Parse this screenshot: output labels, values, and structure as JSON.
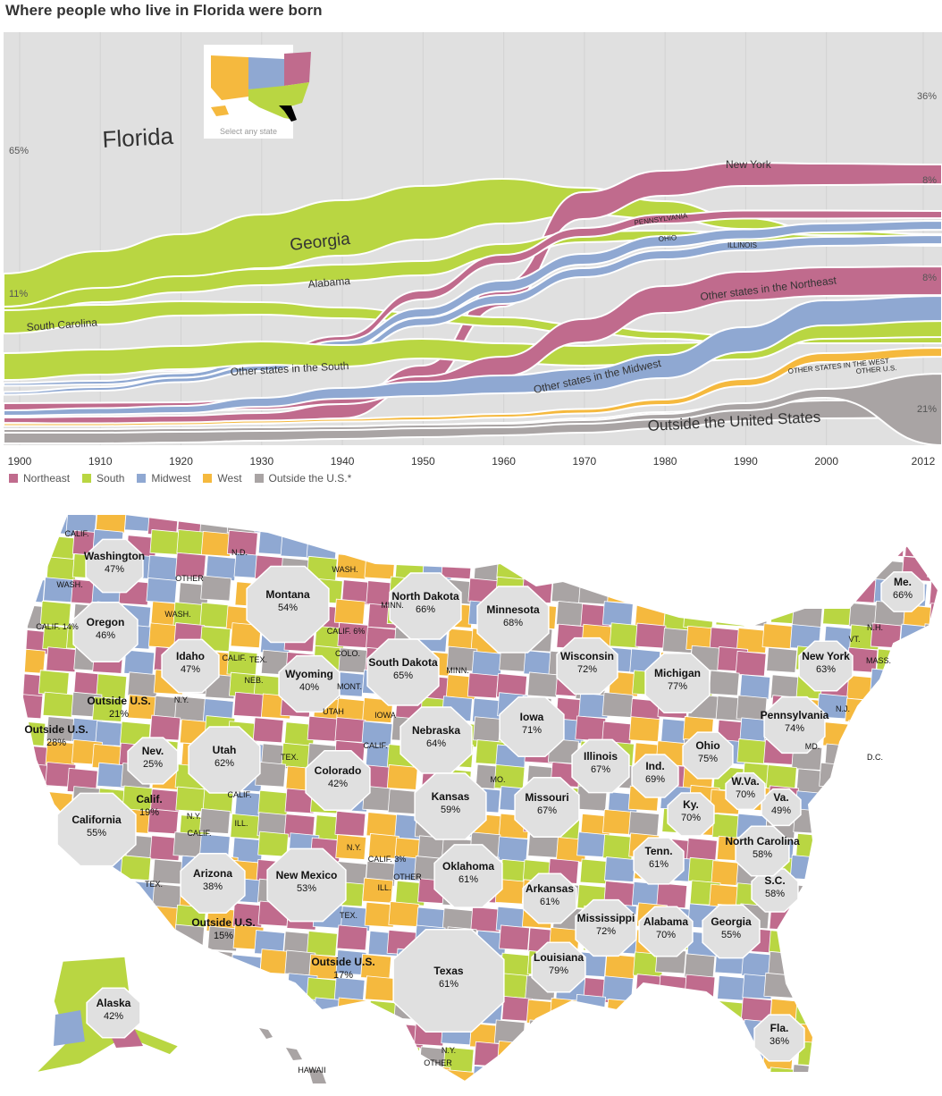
{
  "title": "Where people who live in Florida were born",
  "colors": {
    "northeast": "#c06b8d",
    "south": "#b9d642",
    "midwest": "#8fa8d2",
    "west": "#f5b93e",
    "outside": "#a9a4a4",
    "home": "#e0e0e0",
    "stroke": "#ffffff"
  },
  "inset": {
    "label": "Select any state"
  },
  "chart_data": [
    {
      "type": "area",
      "subtype": "stacked stream",
      "title": "Where people who live in Florida were born",
      "x": [
        "1900",
        "1910",
        "1920",
        "1930",
        "1940",
        "1950",
        "1960",
        "1970",
        "1980",
        "1990",
        "2000",
        "2012"
      ],
      "ylim": [
        0,
        100
      ],
      "legend": [
        {
          "name": "Northeast",
          "color": "northeast"
        },
        {
          "name": "South",
          "color": "south"
        },
        {
          "name": "Midwest",
          "color": "midwest"
        },
        {
          "name": "West",
          "color": "west"
        },
        {
          "name": "Outside the U.S.*",
          "color": "outside"
        }
      ],
      "end_labels": {
        "florida_start": "65%",
        "florida_end": "36%",
        "newyork_end": "8%",
        "otherne_end": "8%",
        "sc_start": "11%",
        "outside_end": "21%"
      },
      "series_labels": {
        "florida": "Florida",
        "georgia": "Georgia",
        "alabama": "Alabama",
        "south_carolina": "South Carolina",
        "other_south": "Other states in the South",
        "new_york": "New York",
        "pennsylvania": "PENNSYLVANIA",
        "ohio": "OHIO",
        "illinois": "ILLINOIS",
        "other_northeast": "Other states in the Northeast",
        "other_midwest": "Other states in the Midwest",
        "other_west": "OTHER STATES IN THE WEST",
        "other_us": "OTHER U.S.",
        "outside": "Outside the United States"
      }
    },
    {
      "type": "map",
      "title": "",
      "home_states": [
        {
          "name": "Washington",
          "pct": "47%"
        },
        {
          "name": "Oregon",
          "pct": "46%"
        },
        {
          "name": "California",
          "pct": "55%"
        },
        {
          "name": "Nev.",
          "pct": "25%"
        },
        {
          "name": "Idaho",
          "pct": "47%"
        },
        {
          "name": "Montana",
          "pct": "54%"
        },
        {
          "name": "Wyoming",
          "pct": "40%"
        },
        {
          "name": "Utah",
          "pct": "62%"
        },
        {
          "name": "Colorado",
          "pct": "42%"
        },
        {
          "name": "Arizona",
          "pct": "38%"
        },
        {
          "name": "New Mexico",
          "pct": "53%"
        },
        {
          "name": "North Dakota",
          "pct": "66%"
        },
        {
          "name": "South Dakota",
          "pct": "65%"
        },
        {
          "name": "Nebraska",
          "pct": "64%"
        },
        {
          "name": "Kansas",
          "pct": "59%"
        },
        {
          "name": "Oklahoma",
          "pct": "61%"
        },
        {
          "name": "Texas",
          "pct": "61%"
        },
        {
          "name": "Minnesota",
          "pct": "68%"
        },
        {
          "name": "Iowa",
          "pct": "71%"
        },
        {
          "name": "Missouri",
          "pct": "67%"
        },
        {
          "name": "Arkansas",
          "pct": "61%"
        },
        {
          "name": "Louisiana",
          "pct": "79%"
        },
        {
          "name": "Wisconsin",
          "pct": "72%"
        },
        {
          "name": "Illinois",
          "pct": "67%"
        },
        {
          "name": "Michigan",
          "pct": "77%"
        },
        {
          "name": "Ind.",
          "pct": "69%"
        },
        {
          "name": "Ohio",
          "pct": "75%"
        },
        {
          "name": "Ky.",
          "pct": "70%"
        },
        {
          "name": "Tenn.",
          "pct": "61%"
        },
        {
          "name": "Mississippi",
          "pct": "72%"
        },
        {
          "name": "Alabama",
          "pct": "70%"
        },
        {
          "name": "Georgia",
          "pct": "55%"
        },
        {
          "name": "Fla.",
          "pct": "36%"
        },
        {
          "name": "S.C.",
          "pct": "58%"
        },
        {
          "name": "North Carolina",
          "pct": "58%"
        },
        {
          "name": "Va.",
          "pct": "49%"
        },
        {
          "name": "W.Va.",
          "pct": "70%"
        },
        {
          "name": "Pennsylvania",
          "pct": "74%"
        },
        {
          "name": "New York",
          "pct": "63%"
        },
        {
          "name": "Me.",
          "pct": "66%"
        },
        {
          "name": "Alaska",
          "pct": "42%"
        },
        {
          "name": "Outside U.S.",
          "pct": "21%"
        },
        {
          "name": "Outside U.S.",
          "pct": "28%"
        },
        {
          "name": "Calif.",
          "pct": "19%"
        },
        {
          "name": "Outside U.S.",
          "pct": "15%"
        },
        {
          "name": "Outside U.S.",
          "pct": "17%"
        }
      ],
      "small_labels": [
        "CALIF.",
        "WASH.",
        "CALIF. 14%",
        "OTHER",
        "N.D.",
        "WASH.",
        "WASH.",
        "CALIF. 6%",
        "CALIF.",
        "TEX.",
        "NEB.",
        "COLO.",
        "MONT.",
        "UTAH",
        "MINN.",
        "MINN.",
        "IOWA",
        "N.Y.",
        "TEX.",
        "CALIF.",
        "CALIF.",
        "N.Y.",
        "CALIF.",
        "ILL.",
        "TEX.",
        "N.Y.",
        "CALIF. 3%",
        "OTHER",
        "ILL.",
        "TEX.",
        "MO.",
        "N.Y.",
        "OTHER",
        "HAWAII",
        "N.J.",
        "MD.",
        "D.C.",
        "VT.",
        "N.H.",
        "MASS."
      ]
    }
  ]
}
